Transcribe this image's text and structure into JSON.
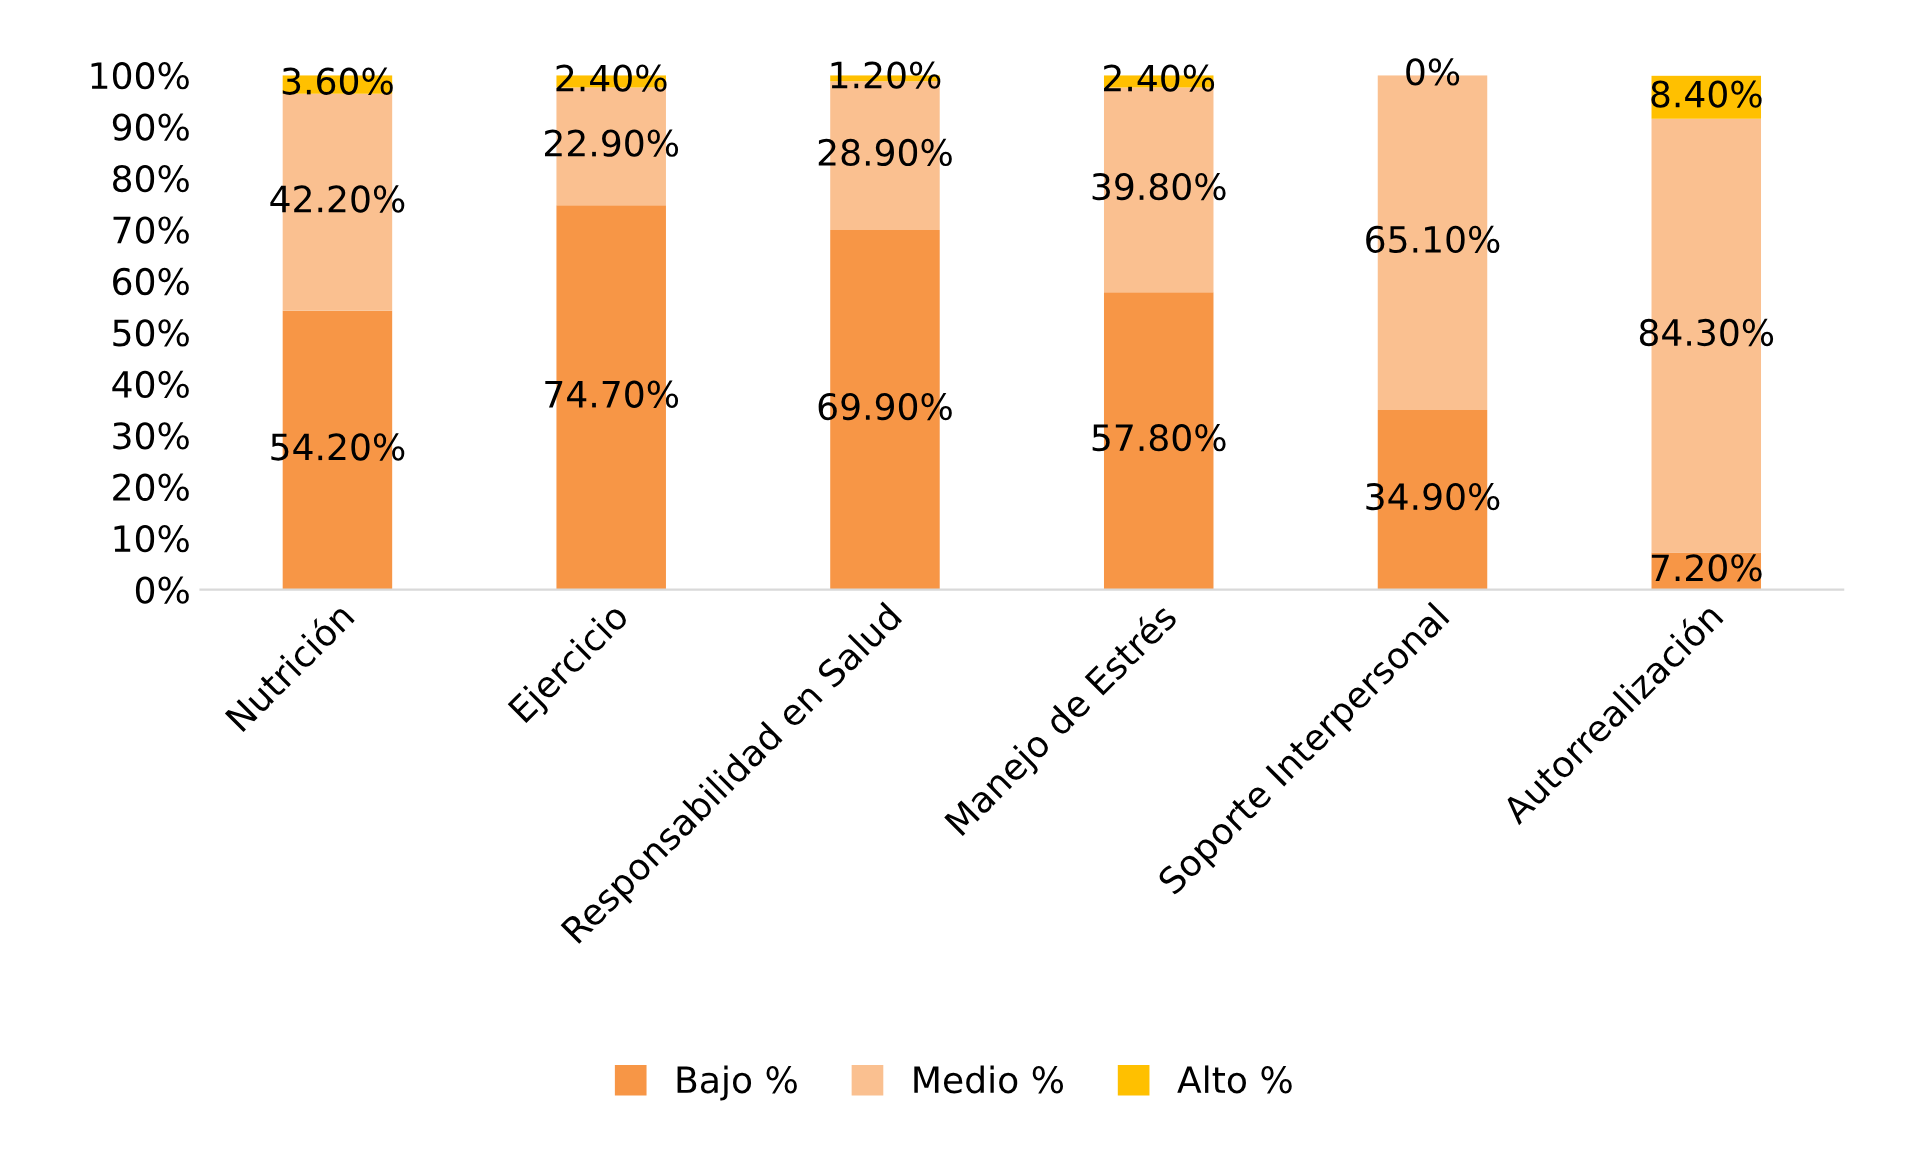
{
  "chart_data": {
    "type": "bar",
    "stacked": true,
    "categories": [
      "Nutrición",
      "Ejercicio",
      "Responsabilidad en Salud",
      "Manejo de Estrés",
      "Soporte Interpersonal",
      "Autorrealización"
    ],
    "series": [
      {
        "name": "Bajo %",
        "color": "#f79646",
        "values": [
          54.2,
          74.7,
          69.9,
          57.8,
          34.9,
          7.2
        ],
        "value_labels": [
          "54.20%",
          "74.70%",
          "69.90%",
          "57.80%",
          "34.90%",
          "7.20%"
        ]
      },
      {
        "name": "Medio %",
        "color": "#fac090",
        "values": [
          42.2,
          22.9,
          28.9,
          39.8,
          65.1,
          84.3
        ],
        "value_labels": [
          "42.20%",
          "22.90%",
          "28.90%",
          "39.80%",
          "65.10%",
          "84.30%"
        ]
      },
      {
        "name": "Alto %",
        "color": "#ffc000",
        "values": [
          3.6,
          2.4,
          1.2,
          2.4,
          0,
          8.4
        ],
        "value_labels": [
          "3.60%",
          "2.40%",
          "1.20%",
          "2.40%",
          "0%",
          "8.40%"
        ]
      }
    ],
    "ylim": [
      0,
      100
    ],
    "yticks": [
      {
        "value": 0,
        "label": "0%"
      },
      {
        "value": 10,
        "label": "10%"
      },
      {
        "value": 20,
        "label": "20%"
      },
      {
        "value": 30,
        "label": "30%"
      },
      {
        "value": 40,
        "label": "40%"
      },
      {
        "value": 50,
        "label": "50%"
      },
      {
        "value": 60,
        "label": "60%"
      },
      {
        "value": 70,
        "label": "70%"
      },
      {
        "value": 80,
        "label": "80%"
      },
      {
        "value": 90,
        "label": "90%"
      },
      {
        "value": 100,
        "label": "100%"
      }
    ],
    "grid": false,
    "legend": "bottom"
  }
}
